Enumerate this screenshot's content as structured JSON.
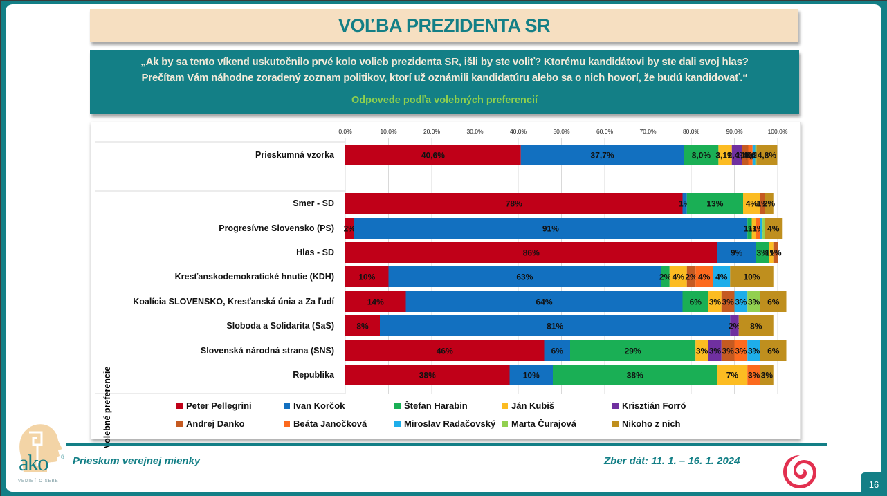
{
  "header": {
    "title": "VOĽBA PREZIDENTA SR",
    "question_line1": "„Ak by sa tento víkend uskutočnilo prvé kolo volieb prezidenta SR, išli by ste voliť? Ktorému kandidátovi by ste dali svoj hlas?",
    "question_line2": "Prečítam Vám náhodne zoradený zoznam politikov, ktorí už oznámili kandidatúru alebo sa o nich hovorí, že budú kandidovať.“",
    "subtitle": "Odpovede podľa volebných preferencií"
  },
  "chart_data": {
    "type": "bar",
    "orientation": "horizontal",
    "stacked": true,
    "title": "",
    "xlabel": "",
    "ylabel": "Volebné preferencie",
    "xlim": [
      0,
      100
    ],
    "x_ticks": [
      "0,0%",
      "10,0%",
      "20,0%",
      "30,0%",
      "40,0%",
      "50,0%",
      "60,0%",
      "70,0%",
      "80,0%",
      "90,0%",
      "100,0%"
    ],
    "grid": true,
    "legend_position": "bottom",
    "series_colors": [
      "#c00018",
      "#1270c0",
      "#1aaf55",
      "#fcbc22",
      "#7030a0",
      "#c55a21",
      "#fc6a1e",
      "#1eaeea",
      "#92d050",
      "#bf8f1e"
    ],
    "series_names": [
      "Peter Pellegrini",
      "Ivan Korčok",
      "Štefan Harabin",
      "Ján Kubiš",
      "Krisztián Forró",
      "Andrej Danko",
      "Beáta Janočková",
      "Miroslav Radačovský",
      "Marta Čurajová",
      "Nikoho z nich"
    ],
    "categories": [
      "Prieskumná vzorka",
      "Smer - SD",
      "Progresívne Slovensko (PS)",
      "Hlas - SD",
      "Kresťanskodemokratické hnutie (KDH)",
      "Koalícia SLOVENSKO, Kresťanská únia a Za ľudí",
      "Sloboda a Solidarita (SaS)",
      "Slovenská národná strana (SNS)",
      "Republika"
    ],
    "rows": [
      {
        "values": [
          40.6,
          37.7,
          8.0,
          3.1,
          2.4,
          1.4,
          1.0,
          0.6,
          0.3,
          4.8
        ],
        "labels": [
          "40,6%",
          "37,7%",
          "8,0%",
          "3,1%",
          "2,4%",
          "1,4%",
          "1,0%",
          "0,6%",
          "0,3%",
          "4,8%"
        ]
      },
      {
        "values": [
          78,
          1,
          13,
          4,
          0,
          1,
          0,
          0,
          0,
          2
        ],
        "labels": [
          "78%",
          "1%",
          "13%",
          "4%",
          "",
          "1%",
          "",
          "",
          "",
          "2%"
        ]
      },
      {
        "values": [
          2,
          91,
          1,
          1,
          0,
          0,
          1,
          0.5,
          0.5,
          4
        ],
        "labels": [
          "2%",
          "91%",
          "1%",
          "1%",
          "",
          "",
          "1%",
          "",
          "",
          "4%"
        ]
      },
      {
        "values": [
          86,
          9,
          3,
          1,
          0,
          1,
          0,
          0,
          0,
          0
        ],
        "labels": [
          "86%",
          "9%",
          "3%",
          "1%",
          "",
          "1%",
          "",
          "",
          "",
          ""
        ]
      },
      {
        "values": [
          10,
          63,
          2,
          4,
          0,
          2,
          4,
          4,
          0,
          10
        ],
        "labels": [
          "10%",
          "63%",
          "2%",
          "4%",
          "",
          "2%",
          "4%",
          "4%",
          "",
          "10%"
        ]
      },
      {
        "values": [
          14,
          64,
          6,
          3,
          0,
          3,
          0,
          3,
          3,
          6
        ],
        "labels": [
          "14%",
          "64%",
          "6%",
          "3%",
          "",
          "3%",
          "",
          "3%",
          "3%",
          "6%"
        ]
      },
      {
        "values": [
          8,
          81,
          0,
          0,
          2,
          0,
          0,
          0,
          0,
          8
        ],
        "labels": [
          "8%",
          "81%",
          "",
          "",
          "2%",
          "",
          "",
          "",
          "",
          "8%"
        ]
      },
      {
        "values": [
          46,
          6,
          29,
          3,
          3,
          3,
          3,
          3,
          0,
          6
        ],
        "labels": [
          "46%",
          "6%",
          "29%",
          "3%",
          "3%",
          "3%",
          "3%",
          "3%",
          "",
          "6%"
        ]
      },
      {
        "values": [
          38,
          10,
          38,
          7,
          0,
          0,
          3,
          0,
          0,
          3
        ],
        "labels": [
          "38%",
          "10%",
          "38%",
          "7%",
          "",
          "",
          "3%",
          "",
          "",
          "3%"
        ]
      }
    ]
  },
  "footer": {
    "survey_label": "Prieskum verejnej mienky",
    "collection_label": "Zber dát: 11. 1. – 16. 1. 2024",
    "page_number": "16",
    "logo_text": "ako",
    "logo_tagline": "VEDIEŤ O SEBE",
    "logo_reg": "®"
  }
}
